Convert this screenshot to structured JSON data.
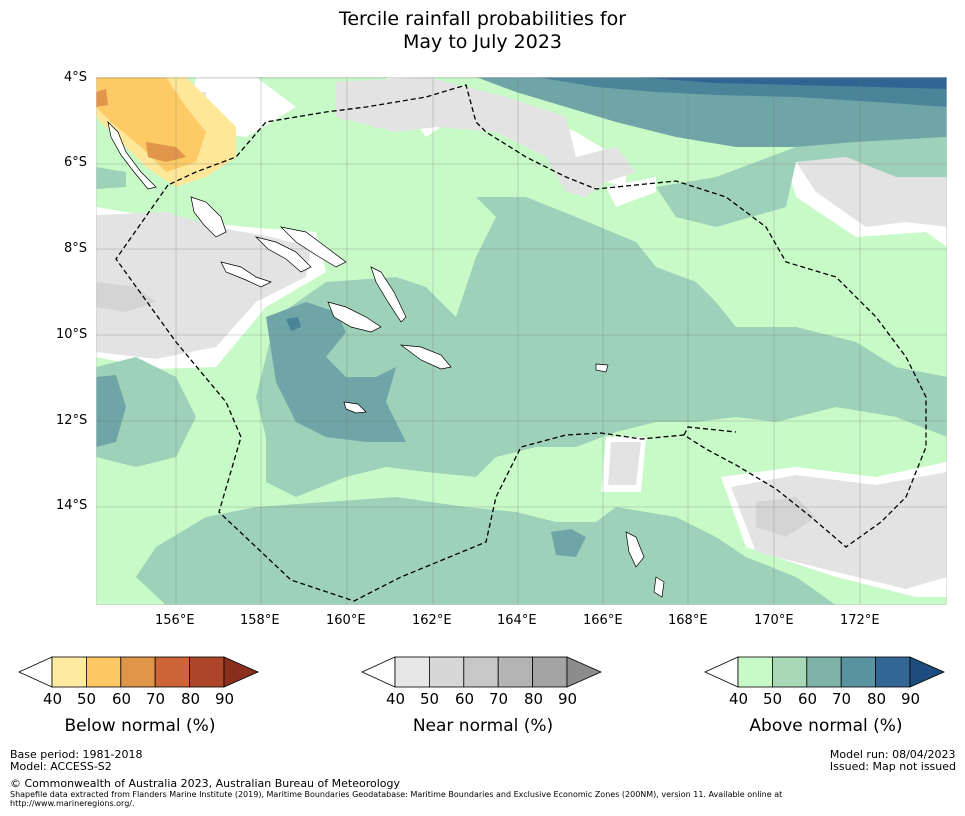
{
  "title": {
    "line1": "Tercile rainfall probabilities for",
    "line2": "May to July 2023"
  },
  "map": {
    "lat_labels": [
      "4°S",
      "6°S",
      "8°S",
      "10°S",
      "12°S",
      "14°S"
    ],
    "lon_labels": [
      "156°E",
      "158°E",
      "160°E",
      "162°E",
      "164°E",
      "166°E",
      "168°E",
      "170°E",
      "172°E"
    ],
    "colors": {
      "above_40": "#c8fac8",
      "above_50": "#9ed1b9",
      "above_60": "#6fa5a6",
      "above_70": "#4a8499",
      "above_80": "#2f6493",
      "near_40": "#e3e3e3",
      "near_50": "#d4d4d4",
      "below_40": "#ffe79a",
      "below_50": "#fdca66",
      "below_60": "#e0954a"
    }
  },
  "colorbars": [
    {
      "title": "Below normal (%)",
      "ticks": [
        "40",
        "50",
        "60",
        "70",
        "80",
        "90"
      ],
      "colors": [
        "#ffffff",
        "#ffeba0",
        "#fec965",
        "#e0954a",
        "#cd6536",
        "#ad4629",
        "#8a2f1c"
      ]
    },
    {
      "title": "Near normal (%)",
      "ticks": [
        "40",
        "50",
        "60",
        "70",
        "80",
        "90"
      ],
      "colors": [
        "#ffffff",
        "#e6e6e6",
        "#d6d6d6",
        "#c7c7c7",
        "#b4b4b4",
        "#a3a3a3",
        "#8c8c8c"
      ]
    },
    {
      "title": "Above normal (%)",
      "ticks": [
        "40",
        "50",
        "60",
        "70",
        "80",
        "90"
      ],
      "colors": [
        "#ffffff",
        "#c8fac8",
        "#a9d8b7",
        "#80b3a8",
        "#5a93a0",
        "#326694",
        "#1e4d7d"
      ]
    }
  ],
  "footer": {
    "base_period": "Base period: 1981-2018",
    "model": "Model: ACCESS-S2",
    "model_run": "Model run: 08/04/2023",
    "issued": "Issued: Map not issued",
    "copyright": "© Commonwealth of Australia 2023, Australian Bureau of Meteorology",
    "shapefile_line1": "Shapefile data extracted from Flanders Marine Institute (2019), Maritime Boundaries Geodatabase: Maritime Boundaries and Exclusive Economic Zones (200NM), version 11. Available online at",
    "shapefile_line2": "http://www.marineregions.org/."
  }
}
